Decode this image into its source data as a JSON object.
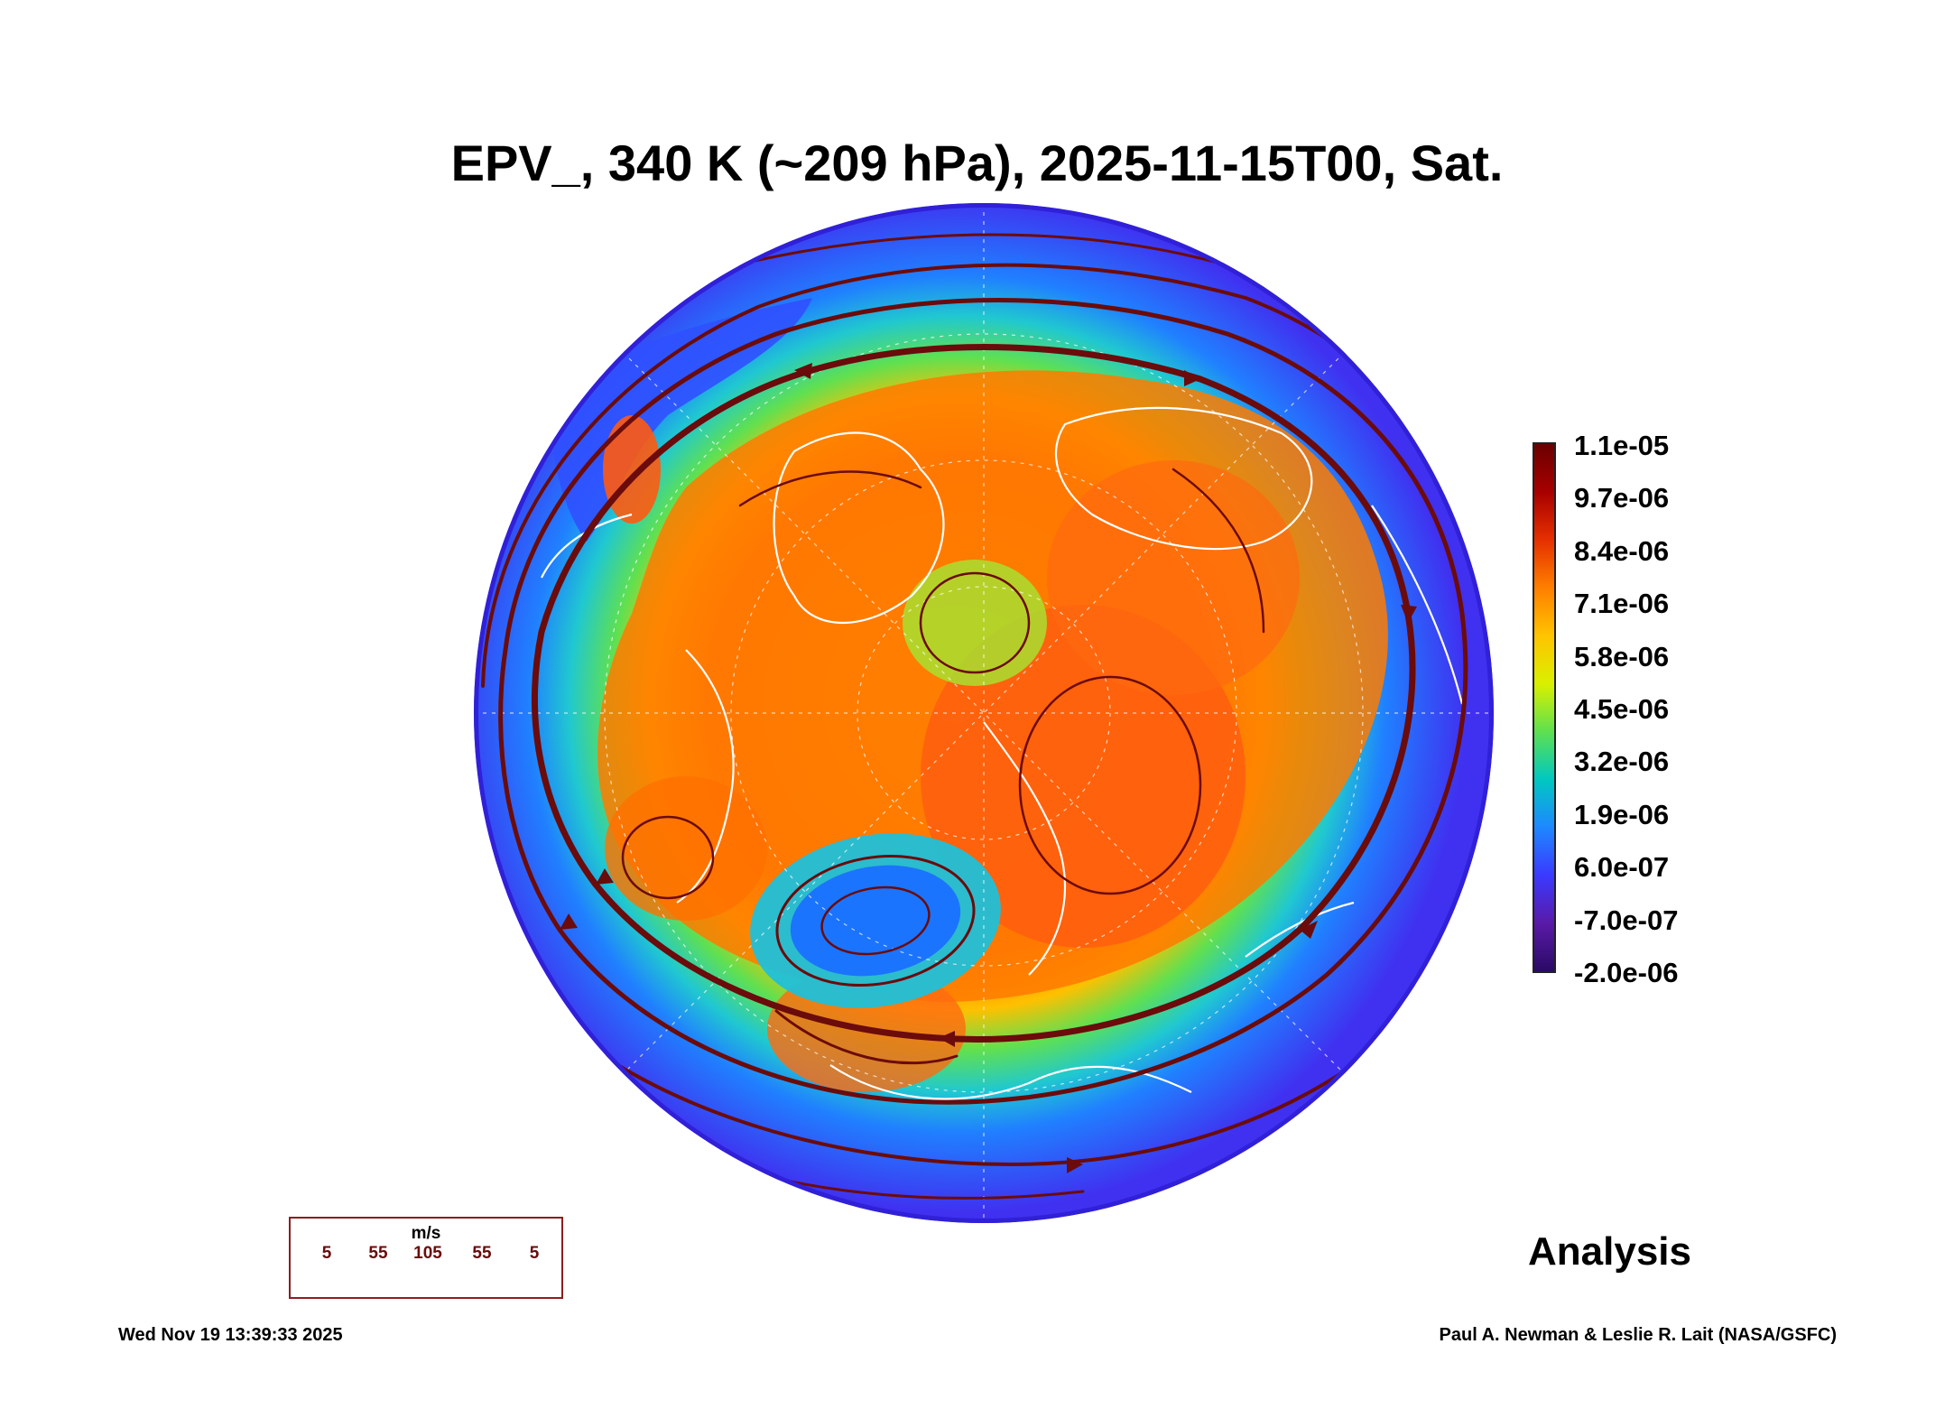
{
  "title": "EPV_, 340 K (~209 hPa), 2025-11-15T00, Sat.",
  "colorbar": {
    "labels": [
      "1.1e-05",
      "9.7e-06",
      "8.4e-06",
      "7.1e-06",
      "5.8e-06",
      "4.5e-06",
      "3.2e-06",
      "1.9e-06",
      "6.0e-07",
      "-7.0e-07",
      "-2.0e-06"
    ],
    "colors_top_to_bottom": [
      "#6b0000",
      "#a80000",
      "#e53000",
      "#ff7f00",
      "#ffc400",
      "#d9f000",
      "#5ee050",
      "#00c8c0",
      "#1e88ff",
      "#3a3aff",
      "#5a1aa8",
      "#2a0a66"
    ]
  },
  "vector_legend": {
    "unit": "m/s",
    "scale_values": [
      "5",
      "55",
      "105",
      "55",
      "5"
    ],
    "color": "#6b0b0b"
  },
  "stamp": "Analysis",
  "footer": {
    "timestamp": "Wed Nov 19 13:39:33 2025",
    "credit": "Paul A. Newman & Leslie R. Lait (NASA/GSFC)"
  },
  "map": {
    "projection": "north-polar-stereographic",
    "field_colors": {
      "outer": "#4a3cff",
      "edge": "#3020d8",
      "mid_blue": "#1e90ff",
      "cyan": "#20d0d0",
      "green": "#40e050",
      "yellow": "#f0d000",
      "orange": "#ff8c00",
      "red_orange": "#ff5a10",
      "dark_red": "#a01000",
      "streamline": "#6b0b0b",
      "coastline": "#ffffff"
    }
  }
}
